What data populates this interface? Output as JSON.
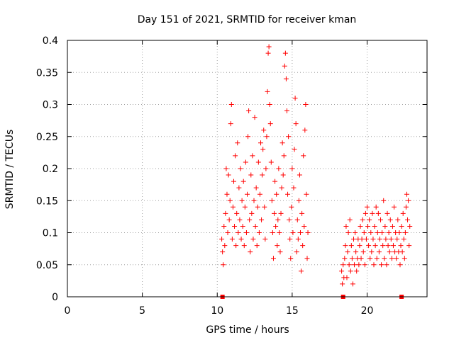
{
  "colors": {
    "series": "#ff0000",
    "axis": "#000000",
    "grid": "#a0a0a0",
    "background": "#ffffff"
  },
  "chart_data": {
    "type": "scatter",
    "title": "Day 151 of 2021, SRMTID for receiver kman",
    "xlabel": "GPS time / hours",
    "ylabel": "SRMTID / TECUs",
    "xlim": [
      0,
      24
    ],
    "ylim": [
      0,
      0.4
    ],
    "grid": true,
    "marker": "+",
    "x_ticks": [
      0,
      5,
      10,
      15,
      20
    ],
    "x_tick_labels": [
      "0",
      "5",
      "10",
      "15",
      "20"
    ],
    "y_ticks": [
      0,
      0.05,
      0.1,
      0.15,
      0.2,
      0.25,
      0.3,
      0.35,
      0.4
    ],
    "y_tick_labels": [
      "0",
      "0.05",
      "0.1",
      "0.15",
      "0.2",
      "0.25",
      "0.3",
      "0.35",
      "0.4"
    ],
    "series": [
      {
        "name": "SRMTID",
        "points": [
          [
            10.3,
            0.09
          ],
          [
            10.35,
            0.07
          ],
          [
            10.4,
            0.05
          ],
          [
            10.45,
            0.11
          ],
          [
            10.5,
            0.08
          ],
          [
            10.55,
            0.13
          ],
          [
            10.6,
            0.2
          ],
          [
            10.65,
            0.16
          ],
          [
            10.7,
            0.1
          ],
          [
            10.75,
            0.19
          ],
          [
            10.8,
            0.12
          ],
          [
            10.85,
            0.15
          ],
          [
            10.9,
            0.27
          ],
          [
            10.95,
            0.3
          ],
          [
            11.0,
            0.09
          ],
          [
            11.05,
            0.14
          ],
          [
            11.1,
            0.18
          ],
          [
            11.15,
            0.11
          ],
          [
            11.2,
            0.22
          ],
          [
            11.25,
            0.08
          ],
          [
            11.3,
            0.13
          ],
          [
            11.35,
            0.24
          ],
          [
            11.4,
            0.1
          ],
          [
            11.45,
            0.17
          ],
          [
            11.5,
            0.12
          ],
          [
            11.55,
            0.2
          ],
          [
            11.6,
            0.09
          ],
          [
            11.65,
            0.15
          ],
          [
            11.7,
            0.11
          ],
          [
            11.75,
            0.18
          ],
          [
            11.8,
            0.08
          ],
          [
            11.85,
            0.14
          ],
          [
            11.9,
            0.21
          ],
          [
            11.95,
            0.1
          ],
          [
            12.0,
            0.16
          ],
          [
            12.05,
            0.25
          ],
          [
            12.1,
            0.29
          ],
          [
            12.15,
            0.12
          ],
          [
            12.2,
            0.07
          ],
          [
            12.25,
            0.19
          ],
          [
            12.3,
            0.13
          ],
          [
            12.35,
            0.22
          ],
          [
            12.4,
            0.09
          ],
          [
            12.45,
            0.15
          ],
          [
            12.5,
            0.28
          ],
          [
            12.55,
            0.11
          ],
          [
            12.6,
            0.17
          ],
          [
            12.65,
            0.08
          ],
          [
            12.7,
            0.14
          ],
          [
            12.75,
            0.21
          ],
          [
            12.8,
            0.1
          ],
          [
            12.85,
            0.16
          ],
          [
            12.9,
            0.24
          ],
          [
            12.95,
            0.12
          ],
          [
            13.0,
            0.19
          ],
          [
            13.05,
            0.23
          ],
          [
            13.1,
            0.26
          ],
          [
            13.15,
            0.14
          ],
          [
            13.2,
            0.09
          ],
          [
            13.25,
            0.2
          ],
          [
            13.3,
            0.25
          ],
          [
            13.35,
            0.32
          ],
          [
            13.4,
            0.38
          ],
          [
            13.45,
            0.39
          ],
          [
            13.5,
            0.3
          ],
          [
            13.55,
            0.27
          ],
          [
            13.6,
            0.21
          ],
          [
            13.65,
            0.15
          ],
          [
            13.7,
            0.1
          ],
          [
            13.75,
            0.06
          ],
          [
            13.8,
            0.13
          ],
          [
            13.85,
            0.18
          ],
          [
            13.9,
            0.11
          ],
          [
            13.95,
            0.16
          ],
          [
            14.0,
            0.08
          ],
          [
            14.05,
            0.12
          ],
          [
            14.1,
            0.2
          ],
          [
            14.15,
            0.1
          ],
          [
            14.2,
            0.07
          ],
          [
            14.25,
            0.13
          ],
          [
            14.3,
            0.17
          ],
          [
            14.35,
            0.24
          ],
          [
            14.4,
            0.19
          ],
          [
            14.45,
            0.22
          ],
          [
            14.5,
            0.36
          ],
          [
            14.55,
            0.38
          ],
          [
            14.6,
            0.34
          ],
          [
            14.65,
            0.29
          ],
          [
            14.7,
            0.16
          ],
          [
            14.75,
            0.25
          ],
          [
            14.8,
            0.12
          ],
          [
            14.85,
            0.09
          ],
          [
            14.9,
            0.06
          ],
          [
            14.95,
            0.14
          ],
          [
            15.0,
            0.2
          ],
          [
            15.05,
            0.1
          ],
          [
            15.1,
            0.17
          ],
          [
            15.15,
            0.23
          ],
          [
            15.2,
            0.31
          ],
          [
            15.25,
            0.27
          ],
          [
            15.3,
            0.07
          ],
          [
            15.35,
            0.12
          ],
          [
            15.4,
            0.09
          ],
          [
            15.45,
            0.15
          ],
          [
            15.5,
            0.19
          ],
          [
            15.55,
            0.1
          ],
          [
            15.6,
            0.04
          ],
          [
            15.65,
            0.13
          ],
          [
            15.7,
            0.08
          ],
          [
            15.75,
            0.22
          ],
          [
            15.8,
            0.11
          ],
          [
            15.85,
            0.26
          ],
          [
            15.9,
            0.3
          ],
          [
            15.95,
            0.16
          ],
          [
            16.0,
            0.06
          ],
          [
            16.05,
            0.1
          ],
          [
            18.3,
            0.04
          ],
          [
            18.35,
            0.02
          ],
          [
            18.4,
            0.05
          ],
          [
            18.45,
            0.03
          ],
          [
            18.5,
            0.06
          ],
          [
            18.55,
            0.08
          ],
          [
            18.6,
            0.11
          ],
          [
            18.65,
            0.03
          ],
          [
            18.7,
            0.07
          ],
          [
            18.75,
            0.1
          ],
          [
            18.8,
            0.05
          ],
          [
            18.85,
            0.12
          ],
          [
            18.9,
            0.04
          ],
          [
            18.95,
            0.08
          ],
          [
            19.0,
            0.06
          ],
          [
            19.05,
            0.02
          ],
          [
            19.1,
            0.09
          ],
          [
            19.15,
            0.05
          ],
          [
            19.2,
            0.1
          ],
          [
            19.25,
            0.07
          ],
          [
            19.3,
            0.04
          ],
          [
            19.35,
            0.06
          ],
          [
            19.4,
            0.09
          ],
          [
            19.45,
            0.05
          ],
          [
            19.5,
            0.08
          ],
          [
            19.55,
            0.11
          ],
          [
            19.6,
            0.06
          ],
          [
            19.65,
            0.09
          ],
          [
            19.7,
            0.12
          ],
          [
            19.75,
            0.07
          ],
          [
            19.8,
            0.1
          ],
          [
            19.85,
            0.05
          ],
          [
            19.9,
            0.13
          ],
          [
            19.95,
            0.09
          ],
          [
            20.0,
            0.14
          ],
          [
            20.05,
            0.11
          ],
          [
            20.1,
            0.08
          ],
          [
            20.15,
            0.12
          ],
          [
            20.2,
            0.06
          ],
          [
            20.25,
            0.1
          ],
          [
            20.3,
            0.07
          ],
          [
            20.35,
            0.13
          ],
          [
            20.4,
            0.09
          ],
          [
            20.45,
            0.05
          ],
          [
            20.5,
            0.11
          ],
          [
            20.55,
            0.08
          ],
          [
            20.6,
            0.14
          ],
          [
            20.65,
            0.06
          ],
          [
            20.7,
            0.1
          ],
          [
            20.75,
            0.13
          ],
          [
            20.8,
            0.07
          ],
          [
            20.85,
            0.09
          ],
          [
            20.9,
            0.12
          ],
          [
            20.95,
            0.05
          ],
          [
            21.0,
            0.1
          ],
          [
            21.05,
            0.08
          ],
          [
            21.1,
            0.15
          ],
          [
            21.15,
            0.06
          ],
          [
            21.2,
            0.11
          ],
          [
            21.25,
            0.09
          ],
          [
            21.3,
            0.05
          ],
          [
            21.35,
            0.13
          ],
          [
            21.4,
            0.08
          ],
          [
            21.45,
            0.1
          ],
          [
            21.5,
            0.07
          ],
          [
            21.55,
            0.12
          ],
          [
            21.6,
            0.09
          ],
          [
            21.65,
            0.06
          ],
          [
            21.7,
            0.11
          ],
          [
            21.75,
            0.08
          ],
          [
            21.8,
            0.14
          ],
          [
            21.85,
            0.07
          ],
          [
            21.9,
            0.1
          ],
          [
            21.95,
            0.06
          ],
          [
            22.0,
            0.09
          ],
          [
            22.05,
            0.12
          ],
          [
            22.1,
            0.07
          ],
          [
            22.15,
            0.1
          ],
          [
            22.2,
            0.05
          ],
          [
            22.25,
            0.08
          ],
          [
            22.3,
            0.11
          ],
          [
            22.35,
            0.07
          ],
          [
            22.4,
            0.13
          ],
          [
            22.45,
            0.09
          ],
          [
            22.5,
            0.06
          ],
          [
            22.55,
            0.1
          ],
          [
            22.6,
            0.14
          ],
          [
            22.65,
            0.16
          ],
          [
            22.7,
            0.12
          ],
          [
            22.75,
            0.15
          ],
          [
            22.8,
            0.08
          ],
          [
            22.85,
            0.11
          ]
        ]
      }
    ],
    "zero_markers": [
      10.35,
      18.4,
      22.3
    ]
  }
}
